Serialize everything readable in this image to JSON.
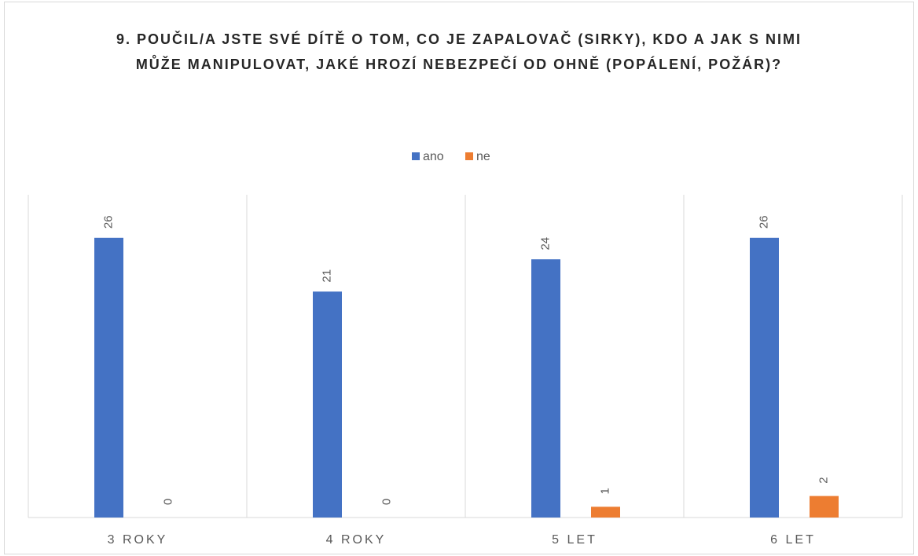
{
  "chart_data": {
    "type": "bar",
    "title": "9. POUČIL/A JSTE SVÉ DÍTĚ O TOM, CO JE ZAPALOVAČ (SIRKY), KDO A JAK S NIMI MŮŽE MANIPULOVAT, JAKÉ HROZÍ NEBEZPEČÍ OD OHNĚ (POPÁLENÍ, POŽÁR)?",
    "categories": [
      "3 ROKY",
      "4 ROKY",
      "5 LET",
      "6 LET"
    ],
    "series": [
      {
        "name": "ano",
        "color": "#4472c4",
        "values": [
          26,
          21,
          24,
          26
        ]
      },
      {
        "name": "ne",
        "color": "#ed7d31",
        "values": [
          0,
          0,
          1,
          2
        ]
      }
    ],
    "ylim": [
      0,
      30
    ],
    "legend": "top"
  }
}
